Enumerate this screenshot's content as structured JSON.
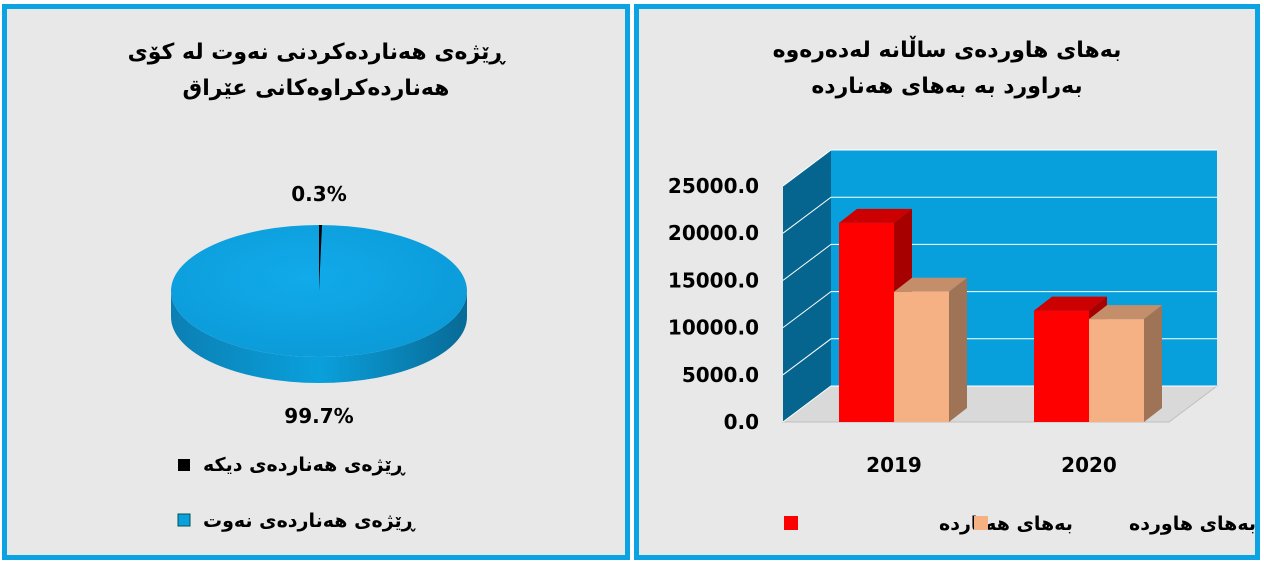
{
  "colors": {
    "frame": "#0ba3e2",
    "background": "#e8e8e8",
    "oil": "#0aa0dc",
    "other": "#000000",
    "export": "#ff0000",
    "import": "#f5b184"
  },
  "chart_data": [
    {
      "type": "pie",
      "title_lines": [
        "ڕێژەی هەناردەکردنی نەوت لە کۆی",
        "هەناردەکراوەکانی عێراق"
      ],
      "slices": [
        {
          "name": "ڕێژەی هەناردەی دیکە",
          "value": 0.3,
          "label": "0.3%"
        },
        {
          "name": "ڕێژەی هەناردەی نەوت",
          "value": 99.7,
          "label": "99.7%"
        }
      ],
      "legend_position": "bottom"
    },
    {
      "type": "bar",
      "title_lines": [
        "بەهای هاوردەی ساڵانە لەدەرەوە",
        "بەراورد بە بەهای هەناردە"
      ],
      "categories": [
        "2019",
        "2020"
      ],
      "series": [
        {
          "name": "بەهای هەناردە",
          "values": [
            21100,
            11800
          ]
        },
        {
          "name": "بەهای هاوردە",
          "values": [
            13800,
            10900
          ]
        }
      ],
      "ylim": [
        0,
        25000
      ],
      "yticks": [
        "0.0",
        "5000.0",
        "10000.0",
        "15000.0",
        "20000.0",
        "25000.0"
      ],
      "grid": true,
      "legend_position": "bottom"
    }
  ]
}
